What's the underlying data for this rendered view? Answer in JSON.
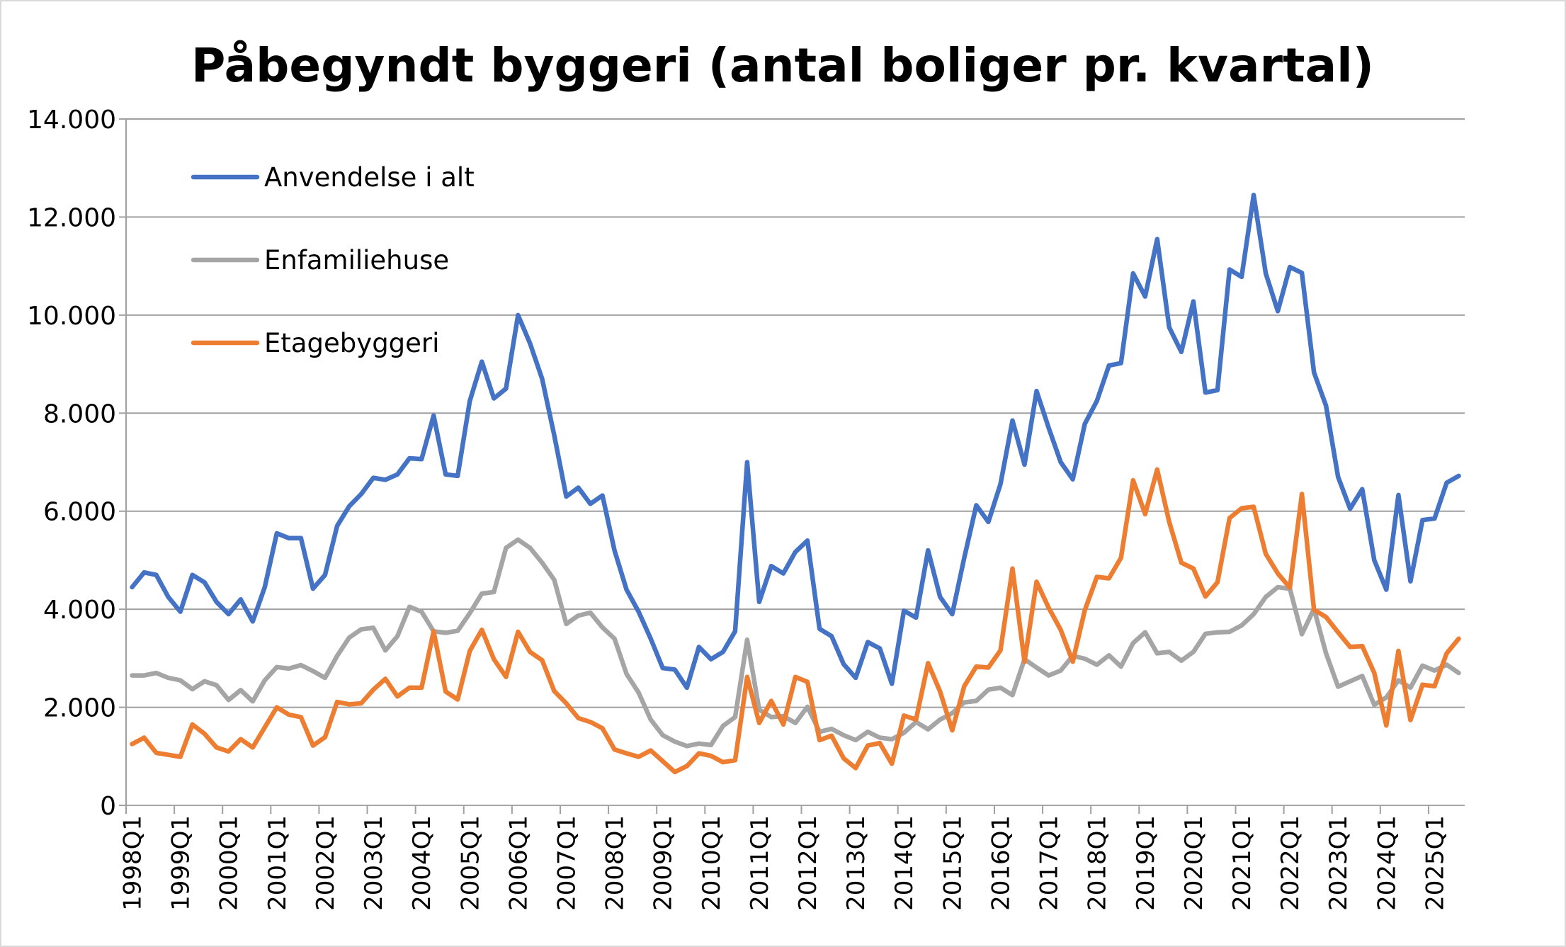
{
  "chart_data": {
    "type": "line",
    "title": "Påbegyndt byggeri (antal boliger pr. kvartal)",
    "xlabel": "",
    "ylabel": "",
    "ylim": [
      0,
      14000
    ],
    "yticks": [
      0,
      2000,
      4000,
      6000,
      8000,
      10000,
      12000,
      14000
    ],
    "ytick_labels": [
      "0",
      "2.000",
      "4.000",
      "6.000",
      "8.000",
      "10.000",
      "12.000",
      "14.000"
    ],
    "grid": "horizontal",
    "legend_position": "top-left (inside)",
    "x_start": "1998Q1",
    "x_end": "2025Q3",
    "xtick_labels": [
      "1998Q1",
      "1999Q1",
      "2000Q1",
      "2001Q1",
      "2002Q1",
      "2003Q1",
      "2004Q1",
      "2005Q1",
      "2006Q1",
      "2007Q1",
      "2008Q1",
      "2009Q1",
      "2010Q1",
      "2011Q1",
      "2012Q1",
      "2013Q1",
      "2014Q1",
      "2015Q1",
      "2016Q1",
      "2017Q1",
      "2018Q1",
      "2019Q1",
      "2020Q1",
      "2021Q1",
      "2022Q1",
      "2023Q1",
      "2024Q1",
      "2025Q1"
    ],
    "series": [
      {
        "name": "Anvendelse i alt",
        "color": "#4472C4",
        "values": [
          4450,
          4750,
          4700,
          4250,
          3950,
          4700,
          4550,
          4150,
          3900,
          4200,
          3750,
          4450,
          5550,
          5450,
          5450,
          4420,
          4700,
          5700,
          6100,
          6350,
          6680,
          6640,
          6750,
          7080,
          7060,
          7950,
          6750,
          6720,
          8250,
          9050,
          8300,
          8500,
          10000,
          9420,
          8700,
          7550,
          6300,
          6480,
          6150,
          6320,
          5200,
          4400,
          3950,
          3400,
          2800,
          2770,
          2400,
          3230,
          2980,
          3130,
          3550,
          7000,
          4150,
          4880,
          4730,
          5170,
          5400,
          3600,
          3450,
          2880,
          2600,
          3330,
          3200,
          2480,
          3970,
          3830,
          5200,
          4250,
          3900,
          5050,
          6120,
          5780,
          6550,
          7850,
          6950,
          8450,
          7700,
          7000,
          6650,
          7780,
          8250,
          8970,
          9020,
          10850,
          10380,
          11550,
          9750,
          9250,
          10280,
          8420,
          8470,
          10930,
          10780,
          12450,
          10850,
          10080,
          10980,
          10860,
          8830,
          8150,
          6700,
          6050,
          6450,
          5000,
          4400,
          6330,
          4570,
          5820,
          5850,
          6580,
          6720
        ]
      },
      {
        "name": "Enfamiliehuse",
        "color": "#A5A5A5",
        "values": [
          2650,
          2650,
          2700,
          2600,
          2550,
          2370,
          2530,
          2450,
          2150,
          2350,
          2120,
          2550,
          2820,
          2790,
          2860,
          2740,
          2600,
          3050,
          3420,
          3590,
          3620,
          3160,
          3450,
          4050,
          3950,
          3550,
          3520,
          3560,
          3920,
          4320,
          4350,
          5250,
          5420,
          5250,
          4950,
          4600,
          3700,
          3870,
          3930,
          3630,
          3400,
          2680,
          2300,
          1750,
          1430,
          1300,
          1210,
          1260,
          1230,
          1620,
          1800,
          3380,
          1950,
          1800,
          1820,
          1680,
          2010,
          1500,
          1560,
          1430,
          1330,
          1500,
          1380,
          1350,
          1480,
          1700,
          1550,
          1750,
          1880,
          2100,
          2130,
          2360,
          2400,
          2250,
          2980,
          2810,
          2650,
          2750,
          3050,
          2990,
          2870,
          3060,
          2830,
          3310,
          3530,
          3100,
          3130,
          2950,
          3130,
          3500,
          3530,
          3540,
          3670,
          3900,
          4250,
          4450,
          4420,
          3490,
          4010,
          3100,
          2420,
          2530,
          2640,
          2050,
          2200,
          2550,
          2400,
          2850,
          2750,
          2870,
          2700
        ]
      },
      {
        "name": "Etagebyggeri",
        "color": "#ED7D31",
        "values": [
          1250,
          1380,
          1070,
          1030,
          990,
          1650,
          1460,
          1180,
          1100,
          1350,
          1180,
          1590,
          2000,
          1850,
          1800,
          1220,
          1390,
          2110,
          2060,
          2080,
          2360,
          2580,
          2220,
          2400,
          2400,
          3550,
          2320,
          2160,
          3150,
          3580,
          2980,
          2620,
          3540,
          3130,
          2960,
          2330,
          2080,
          1780,
          1700,
          1570,
          1140,
          1060,
          990,
          1120,
          900,
          680,
          800,
          1060,
          1010,
          880,
          920,
          2620,
          1680,
          2130,
          1650,
          2620,
          2520,
          1330,
          1420,
          960,
          760,
          1220,
          1270,
          850,
          1830,
          1750,
          2900,
          2320,
          1530,
          2430,
          2830,
          2810,
          3160,
          4830,
          2930,
          4560,
          4030,
          3580,
          2930,
          3980,
          4660,
          4630,
          5050,
          6630,
          5940,
          6850,
          5780,
          4950,
          4830,
          4260,
          4550,
          5860,
          6060,
          6090,
          5130,
          4730,
          4440,
          6350,
          3990,
          3840,
          3530,
          3230,
          3250,
          2700,
          1630,
          3150,
          1740,
          2460,
          2430,
          3100,
          3400
        ]
      }
    ]
  }
}
